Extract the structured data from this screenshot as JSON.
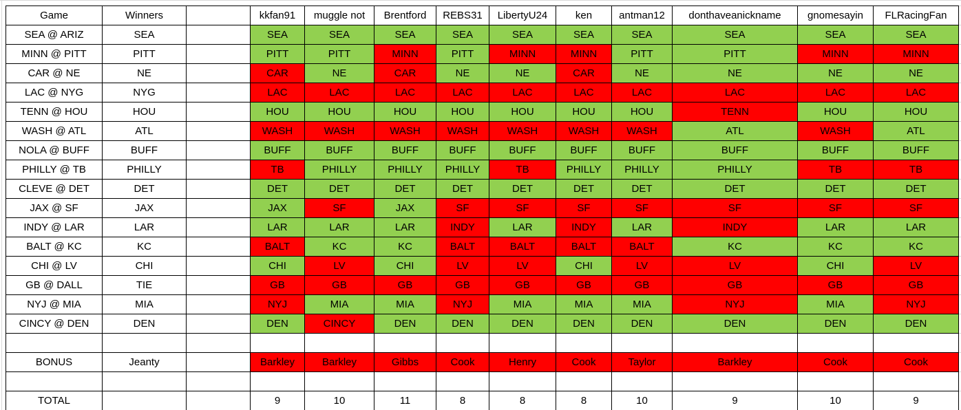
{
  "colors": {
    "correct": "#92d050",
    "incorrect": "#ff0000",
    "border": "#000000",
    "gridline": "#d9d9d9"
  },
  "header": {
    "game_label": "Game",
    "winners_label": "Winners",
    "players": [
      "kkfan91",
      "muggle not",
      "Brentford",
      "REBS31",
      "LibertyU24",
      "ken",
      "antman12",
      "donthaveanickname",
      "gnomesayin",
      "FLRacingFan"
    ]
  },
  "games": [
    {
      "game": "SEA @ ARIZ",
      "winner": "SEA",
      "picks": [
        "SEA",
        "SEA",
        "SEA",
        "SEA",
        "SEA",
        "SEA",
        "SEA",
        "SEA",
        "SEA",
        "SEA"
      ],
      "results": [
        true,
        true,
        true,
        true,
        true,
        true,
        true,
        true,
        true,
        true
      ]
    },
    {
      "game": "MINN @ PITT",
      "winner": "PITT",
      "picks": [
        "PITT",
        "PITT",
        "MINN",
        "PITT",
        "MINN",
        "MINN",
        "PITT",
        "PITT",
        "MINN",
        "MINN"
      ],
      "results": [
        true,
        true,
        false,
        true,
        false,
        false,
        true,
        true,
        false,
        false
      ]
    },
    {
      "game": "CAR @ NE",
      "winner": "NE",
      "picks": [
        "CAR",
        "NE",
        "CAR",
        "NE",
        "NE",
        "CAR",
        "NE",
        "NE",
        "NE",
        "NE"
      ],
      "results": [
        false,
        true,
        false,
        true,
        true,
        false,
        true,
        true,
        true,
        true
      ]
    },
    {
      "game": "LAC @ NYG",
      "winner": "NYG",
      "picks": [
        "LAC",
        "LAC",
        "LAC",
        "LAC",
        "LAC",
        "LAC",
        "LAC",
        "LAC",
        "LAC",
        "LAC"
      ],
      "results": [
        false,
        false,
        false,
        false,
        false,
        false,
        false,
        false,
        false,
        false
      ]
    },
    {
      "game": "TENN @ HOU",
      "winner": "HOU",
      "picks": [
        "HOU",
        "HOU",
        "HOU",
        "HOU",
        "HOU",
        "HOU",
        "HOU",
        "TENN",
        "HOU",
        "HOU"
      ],
      "results": [
        true,
        true,
        true,
        true,
        true,
        true,
        true,
        false,
        true,
        true
      ]
    },
    {
      "game": "WASH @ ATL",
      "winner": "ATL",
      "picks": [
        "WASH",
        "WASH",
        "WASH",
        "WASH",
        "WASH",
        "WASH",
        "WASH",
        "ATL",
        "WASH",
        "ATL"
      ],
      "results": [
        false,
        false,
        false,
        false,
        false,
        false,
        false,
        true,
        false,
        true
      ]
    },
    {
      "game": "NOLA @ BUFF",
      "winner": "BUFF",
      "picks": [
        "BUFF",
        "BUFF",
        "BUFF",
        "BUFF",
        "BUFF",
        "BUFF",
        "BUFF",
        "BUFF",
        "BUFF",
        "BUFF"
      ],
      "results": [
        true,
        true,
        true,
        true,
        true,
        true,
        true,
        true,
        true,
        true
      ]
    },
    {
      "game": "PHILLY @ TB",
      "winner": "PHILLY",
      "picks": [
        "TB",
        "PHILLY",
        "PHILLY",
        "PHILLY",
        "TB",
        "PHILLY",
        "PHILLY",
        "PHILLY",
        "TB",
        "TB"
      ],
      "results": [
        false,
        true,
        true,
        true,
        false,
        true,
        true,
        true,
        false,
        false
      ]
    },
    {
      "game": "CLEVE @ DET",
      "winner": "DET",
      "picks": [
        "DET",
        "DET",
        "DET",
        "DET",
        "DET",
        "DET",
        "DET",
        "DET",
        "DET",
        "DET"
      ],
      "results": [
        true,
        true,
        true,
        true,
        true,
        true,
        true,
        true,
        true,
        true
      ]
    },
    {
      "game": "JAX @ SF",
      "winner": "JAX",
      "picks": [
        "JAX",
        "SF",
        "JAX",
        "SF",
        "SF",
        "SF",
        "SF",
        "SF",
        "SF",
        "SF"
      ],
      "results": [
        true,
        false,
        true,
        false,
        false,
        false,
        false,
        false,
        false,
        false
      ]
    },
    {
      "game": "INDY @ LAR",
      "winner": "LAR",
      "picks": [
        "LAR",
        "LAR",
        "LAR",
        "INDY",
        "LAR",
        "INDY",
        "LAR",
        "INDY",
        "LAR",
        "LAR"
      ],
      "results": [
        true,
        true,
        true,
        false,
        true,
        false,
        true,
        false,
        true,
        true
      ]
    },
    {
      "game": "BALT @ KC",
      "winner": "KC",
      "picks": [
        "BALT",
        "KC",
        "KC",
        "BALT",
        "BALT",
        "BALT",
        "BALT",
        "KC",
        "KC",
        "KC"
      ],
      "results": [
        false,
        true,
        true,
        false,
        false,
        false,
        false,
        true,
        true,
        true
      ]
    },
    {
      "game": "CHI @ LV",
      "winner": "CHI",
      "picks": [
        "CHI",
        "LV",
        "CHI",
        "LV",
        "LV",
        "CHI",
        "LV",
        "LV",
        "CHI",
        "LV"
      ],
      "results": [
        true,
        false,
        true,
        false,
        false,
        true,
        false,
        false,
        true,
        false
      ]
    },
    {
      "game": "GB @ DALL",
      "winner": "TIE",
      "picks": [
        "GB",
        "GB",
        "GB",
        "GB",
        "GB",
        "GB",
        "GB",
        "GB",
        "GB",
        "GB"
      ],
      "results": [
        false,
        false,
        false,
        false,
        false,
        false,
        false,
        false,
        false,
        false
      ]
    },
    {
      "game": "NYJ @ MIA",
      "winner": "MIA",
      "picks": [
        "NYJ",
        "MIA",
        "MIA",
        "NYJ",
        "MIA",
        "MIA",
        "MIA",
        "NYJ",
        "MIA",
        "NYJ"
      ],
      "results": [
        false,
        true,
        true,
        false,
        true,
        true,
        true,
        false,
        true,
        false
      ]
    },
    {
      "game": "CINCY @ DEN",
      "winner": "DEN",
      "picks": [
        "DEN",
        "CINCY",
        "DEN",
        "DEN",
        "DEN",
        "DEN",
        "DEN",
        "DEN",
        "DEN",
        "DEN"
      ],
      "results": [
        true,
        false,
        true,
        true,
        true,
        true,
        true,
        true,
        true,
        true
      ]
    }
  ],
  "bonus": {
    "label": "BONUS",
    "winner": "Jeanty",
    "picks": [
      "Barkley",
      "Barkley",
      "Gibbs",
      "Cook",
      "Henry",
      "Cook",
      "Taylor",
      "Barkley",
      "Cook",
      "Cook"
    ],
    "results": [
      false,
      false,
      false,
      false,
      false,
      false,
      false,
      false,
      false,
      false
    ]
  },
  "total": {
    "label": "TOTAL",
    "values": [
      9,
      10,
      11,
      8,
      8,
      8,
      10,
      9,
      10,
      9
    ]
  }
}
